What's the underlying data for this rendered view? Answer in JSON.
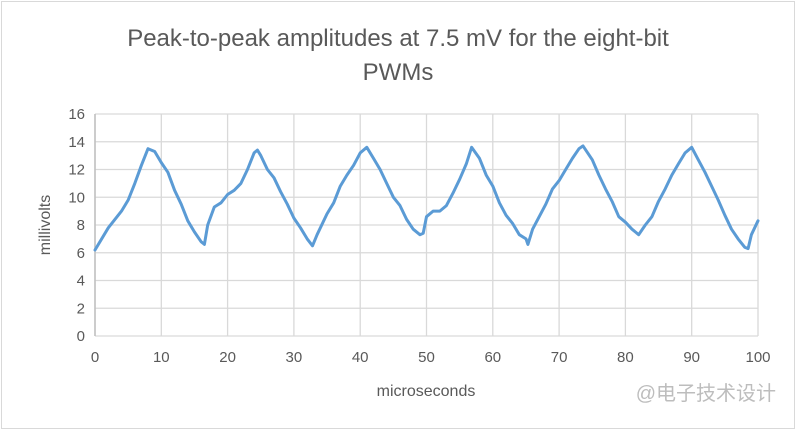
{
  "chart_data": {
    "type": "line",
    "title": "Peak-to-peak amplitudes at 7.5 mV for the eight-bit PWMs",
    "title_lines": [
      "Peak-to-peak amplitudes at 7.5 mV for the eight-bit",
      "PWMs"
    ],
    "xlabel": "microseconds",
    "ylabel": "millivolts",
    "xlim": [
      0,
      100
    ],
    "ylim": [
      0,
      16
    ],
    "xticks": [
      0,
      10,
      20,
      30,
      40,
      50,
      60,
      70,
      80,
      90,
      100
    ],
    "yticks": [
      0,
      2,
      4,
      6,
      8,
      10,
      12,
      14,
      16
    ],
    "grid": true,
    "legend": "none",
    "series": [
      {
        "name": "millivolts",
        "color": "#5b9bd5",
        "x": [
          0,
          2,
          4,
          5,
          6,
          7,
          8,
          9,
          10,
          11,
          12,
          13,
          14,
          15,
          16,
          16.5,
          17,
          18,
          19,
          20,
          21,
          22,
          23,
          24,
          24.5,
          25,
          26,
          27,
          28,
          29,
          30,
          31,
          32,
          32.8,
          33.5,
          35,
          36,
          37,
          38,
          39,
          40,
          41,
          42,
          43,
          44,
          45,
          46,
          47,
          48,
          49,
          49.5,
          50,
          51,
          52,
          53,
          54,
          55,
          56,
          56.8,
          58,
          59,
          60,
          61,
          62,
          63,
          64,
          65,
          65.3,
          66,
          68,
          69,
          70,
          71,
          72,
          73,
          73.6,
          75,
          76,
          77,
          78,
          79,
          80,
          81,
          82,
          83,
          84,
          85,
          86,
          87,
          88,
          89,
          90,
          91,
          92,
          93,
          94,
          95,
          96,
          97,
          98,
          98.5,
          99,
          100
        ],
        "y": [
          6.2,
          7.8,
          9,
          9.8,
          11,
          12.3,
          13.5,
          13.3,
          12.5,
          11.8,
          10.5,
          9.5,
          8.3,
          7.5,
          6.8,
          6.6,
          8,
          9.3,
          9.6,
          10.2,
          10.5,
          11,
          12,
          13.2,
          13.4,
          13,
          12,
          11.4,
          10.4,
          9.5,
          8.5,
          7.8,
          7,
          6.5,
          7.3,
          8.8,
          9.6,
          10.8,
          11.6,
          12.3,
          13.2,
          13.6,
          12.8,
          12,
          11,
          10,
          9.4,
          8.4,
          7.7,
          7.3,
          7.4,
          8.6,
          9,
          9,
          9.4,
          10.3,
          11.3,
          12.4,
          13.6,
          12.8,
          11.6,
          10.8,
          9.6,
          8.7,
          8.1,
          7.3,
          7,
          6.6,
          7.7,
          9.5,
          10.6,
          11.2,
          12,
          12.8,
          13.5,
          13.7,
          12.7,
          11.6,
          10.6,
          9.7,
          8.6,
          8.2,
          7.7,
          7.3,
          8,
          8.6,
          9.7,
          10.6,
          11.6,
          12.4,
          13.2,
          13.6,
          12.7,
          11.8,
          10.8,
          9.8,
          8.7,
          7.7,
          7,
          6.4,
          6.3,
          7.3,
          8.3
        ]
      }
    ]
  },
  "watermark": "@电子技术设计",
  "colors": {
    "line": "#5b9bd5",
    "grid": "#d9d9d9",
    "text": "#595959"
  }
}
